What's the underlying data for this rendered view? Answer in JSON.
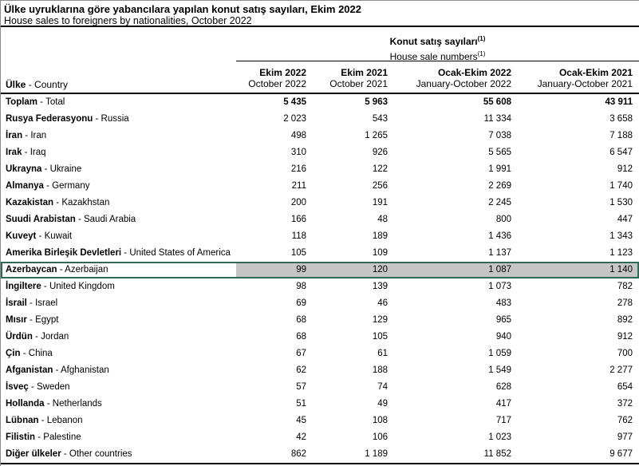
{
  "header": {
    "title": "Ülke uyruklarına göre yabancılara yapılan konut satış sayıları, Ekim 2022",
    "subtitle": "House sales to foreigners by nationalities, October 2022"
  },
  "table": {
    "group_header": {
      "title_tr": "Konut satış sayıları",
      "title_en": "House sale numbers",
      "footnote_marker": "(1)"
    },
    "name_separator": " - ",
    "country_header": {
      "tr": "Ülke",
      "en": "Country"
    },
    "columns": [
      {
        "tr": "Ekim 2022",
        "en": "October 2022"
      },
      {
        "tr": "Ekim 2021",
        "en": "October 2021"
      },
      {
        "tr": "Ocak-Ekim 2022",
        "en": "January-October 2022"
      },
      {
        "tr": "Ocak-Ekim 2021",
        "en": "January-October 2021"
      }
    ],
    "rows": [
      {
        "tr": "Toplam",
        "en": "Total",
        "values": [
          "5 435",
          "5 963",
          "55 608",
          "43 911"
        ],
        "bold_values": true
      },
      {
        "tr": "Rusya Federasyonu",
        "en": "Russia",
        "values": [
          "2 023",
          "543",
          "11 334",
          "3 658"
        ]
      },
      {
        "tr": "İran",
        "en": "Iran",
        "values": [
          "498",
          "1 265",
          "7 038",
          "7 188"
        ]
      },
      {
        "tr": "Irak",
        "en": "Iraq",
        "values": [
          "310",
          "926",
          "5 565",
          "6 547"
        ]
      },
      {
        "tr": "Ukrayna",
        "en": "Ukraine",
        "values": [
          "216",
          "122",
          "1 991",
          "912"
        ]
      },
      {
        "tr": "Almanya",
        "en": "Germany",
        "values": [
          "211",
          "256",
          "2 269",
          "1 740"
        ]
      },
      {
        "tr": "Kazakistan",
        "en": "Kazakhstan",
        "values": [
          "200",
          "191",
          "2 245",
          "1 530"
        ]
      },
      {
        "tr": "Suudi Arabistan",
        "en": "Saudi Arabia",
        "values": [
          "166",
          "48",
          "800",
          "447"
        ]
      },
      {
        "tr": "Kuveyt",
        "en": "Kuwait",
        "values": [
          "118",
          "189",
          "1 436",
          "1 343"
        ]
      },
      {
        "tr": "Amerika Birleşik Devletleri",
        "en": "United States of America",
        "values": [
          "105",
          "109",
          "1 137",
          "1 123"
        ]
      },
      {
        "tr": "Azerbaycan",
        "en": "Azerbaijan",
        "values": [
          "99",
          "120",
          "1 087",
          "1 140"
        ],
        "highlighted": true
      },
      {
        "tr": "İngiltere",
        "en": "United Kingdom",
        "values": [
          "98",
          "139",
          "1 073",
          "782"
        ]
      },
      {
        "tr": "İsrail",
        "en": "Israel",
        "values": [
          "69",
          "46",
          "483",
          "278"
        ]
      },
      {
        "tr": "Mısır",
        "en": "Egypt",
        "values": [
          "68",
          "129",
          "965",
          "892"
        ]
      },
      {
        "tr": "Ürdün",
        "en": "Jordan",
        "values": [
          "68",
          "105",
          "940",
          "912"
        ]
      },
      {
        "tr": "Çin",
        "en": "China",
        "values": [
          "67",
          "61",
          "1 059",
          "700"
        ]
      },
      {
        "tr": "Afganistan",
        "en": "Afghanistan",
        "values": [
          "62",
          "188",
          "1 549",
          "2 277"
        ]
      },
      {
        "tr": "İsveç",
        "en": "Sweden",
        "values": [
          "57",
          "74",
          "628",
          "654"
        ]
      },
      {
        "tr": "Hollanda",
        "en": "Netherlands",
        "values": [
          "51",
          "49",
          "417",
          "372"
        ]
      },
      {
        "tr": "Lübnan",
        "en": "Lebanon",
        "values": [
          "45",
          "108",
          "717",
          "762"
        ]
      },
      {
        "tr": "Filistin",
        "en": "Palestine",
        "values": [
          "42",
          "106",
          "1 023",
          "977"
        ]
      },
      {
        "tr": "Diğer ülkeler",
        "en": "Other countries",
        "values": [
          "862",
          "1 189",
          "11 852",
          "9 677"
        ]
      }
    ]
  },
  "colors": {
    "highlight_border": "#2e6b57",
    "highlight_background": "#c6c6c6"
  }
}
